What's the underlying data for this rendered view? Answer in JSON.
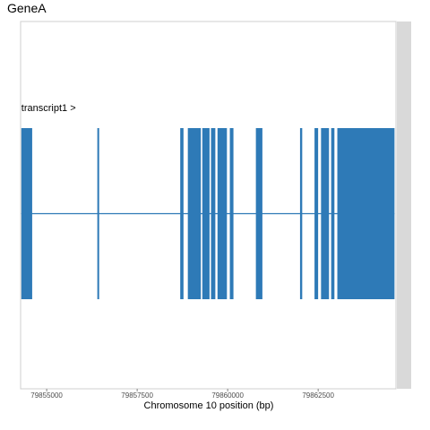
{
  "title": "GeneA",
  "chart_data": {
    "type": "gene-track",
    "title": "GeneA",
    "xlabel": "Chromosome 10 position (bp)",
    "xlim": [
      79854280,
      79864650
    ],
    "xticks": [
      79855000,
      79857500,
      79860000,
      79862500
    ],
    "xtick_labels": [
      "79855000",
      "79857500",
      "79860000",
      "79862500"
    ],
    "grid": false,
    "transcripts": [
      {
        "label": "transcript1 >",
        "strand": "+",
        "start": 79854300,
        "end": 79864610,
        "exons": [
          [
            79854300,
            79854600
          ],
          [
            79856400,
            79856450
          ],
          [
            79858690,
            79858780
          ],
          [
            79858900,
            79859260
          ],
          [
            79859300,
            79859500
          ],
          [
            79859540,
            79859660
          ],
          [
            79859720,
            79859980
          ],
          [
            79860060,
            79860160
          ],
          [
            79860780,
            79860960
          ],
          [
            79862000,
            79862060
          ],
          [
            79862400,
            79862500
          ],
          [
            79862580,
            79862800
          ],
          [
            79862860,
            79862950
          ],
          [
            79863030,
            79864610
          ]
        ]
      }
    ],
    "colors": {
      "feature": "#2e7ab7",
      "panel_border": "#cfcfcf",
      "strip": "#d9d9d9",
      "tick_text": "#4d4d4d"
    }
  }
}
